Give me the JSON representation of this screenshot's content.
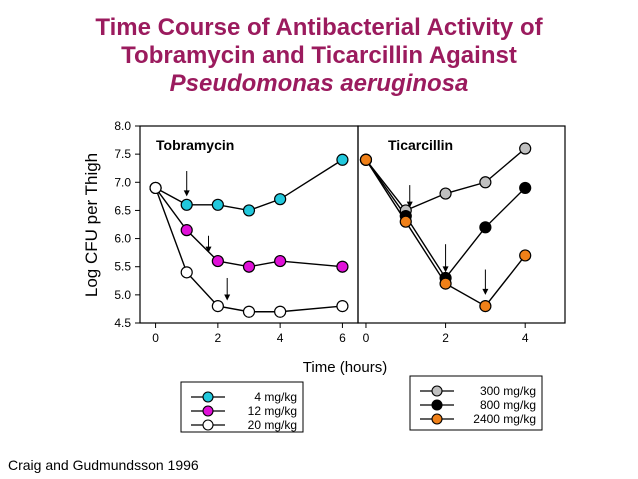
{
  "title": {
    "line1": "Time Course of Antibacterial Activity of",
    "line2": "Tobramycin and Ticarcillin Against",
    "line3": "Pseudomonas aeruginosa"
  },
  "source": "Craig and Gudmundsson 1996",
  "chart_data": {
    "type": "line",
    "ylabel": "Log CFU per Thigh",
    "xlabel": "Time (hours)",
    "ylim": [
      4.5,
      8.0
    ],
    "yticks": [
      "4.5",
      "5.0",
      "5.5",
      "6.0",
      "6.5",
      "7.0",
      "7.5",
      "8.0"
    ],
    "panels": [
      {
        "name": "Tobramycin",
        "xlim": [
          -0.5,
          6.5
        ],
        "xticks": [
          "0",
          "2",
          "4",
          "6"
        ],
        "series": [
          {
            "name": "4 mg/kg",
            "color": "#22c8dc",
            "x": [
              0,
              1,
              2,
              3,
              4,
              6
            ],
            "y": [
              6.9,
              6.6,
              6.6,
              6.5,
              6.7,
              7.4
            ]
          },
          {
            "name": "12 mg/kg",
            "color": "#e010d8",
            "x": [
              0,
              1,
              2,
              3,
              4,
              6
            ],
            "y": [
              6.9,
              6.15,
              5.6,
              5.5,
              5.6,
              5.5
            ]
          },
          {
            "name": "20 mg/kg",
            "color": "#ffffff",
            "x": [
              0,
              1,
              2,
              3,
              4,
              6
            ],
            "y": [
              6.9,
              5.4,
              4.8,
              4.7,
              4.7,
              4.8
            ]
          }
        ],
        "arrows": [
          {
            "x": 1,
            "y_top": 7.2,
            "y_bottom": 6.75
          },
          {
            "x": 1.7,
            "y_top": 6.05,
            "y_bottom": 5.75
          },
          {
            "x": 2.3,
            "y_top": 5.3,
            "y_bottom": 4.9
          }
        ]
      },
      {
        "name": "Ticarcillin",
        "xlim": [
          -0.2,
          5
        ],
        "xticks": [
          "0",
          "2",
          "4"
        ],
        "series": [
          {
            "name": "300 mg/kg",
            "color": "#c0c0c0",
            "x": [
              0,
              1,
              2,
              3,
              4
            ],
            "y": [
              7.4,
              6.5,
              6.8,
              7.0,
              7.6
            ]
          },
          {
            "name": "800 mg/kg",
            "color": "#000000",
            "x": [
              0,
              1,
              2,
              3,
              4
            ],
            "y": [
              7.4,
              6.4,
              5.3,
              6.2,
              6.9
            ]
          },
          {
            "name": "2400 mg/kg",
            "color": "#f08018",
            "x": [
              0,
              1,
              2,
              3,
              4
            ],
            "y": [
              7.4,
              6.3,
              5.2,
              4.8,
              5.7
            ]
          }
        ],
        "arrows": [
          {
            "x": 1.1,
            "y_top": 6.95,
            "y_bottom": 6.55
          },
          {
            "x": 2,
            "y_top": 5.9,
            "y_bottom": 5.4
          },
          {
            "x": 3,
            "y_top": 5.45,
            "y_bottom": 5.0
          }
        ]
      }
    ]
  }
}
